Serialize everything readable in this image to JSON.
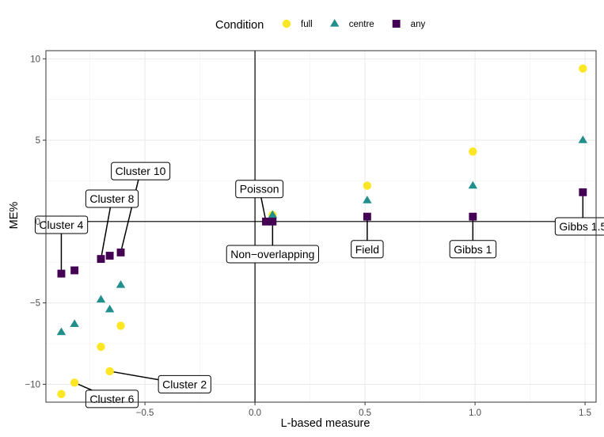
{
  "chart_data": {
    "type": "scatter",
    "title": "",
    "xlabel": "L-based measure",
    "ylabel": "ME%",
    "xlim": [
      -0.95,
      1.55
    ],
    "ylim": [
      -11.1,
      10.5
    ],
    "xticks": [
      -0.5,
      0.0,
      0.5,
      1.0,
      1.5
    ],
    "xtick_labels": [
      "−0.5",
      "0.0",
      "0.5",
      "1.0",
      "1.5"
    ],
    "yticks": [
      -10,
      -5,
      0,
      5,
      10
    ],
    "ytick_labels": [
      "−10",
      "−5",
      "0",
      "5",
      "10"
    ],
    "reference_lines": {
      "x": 0,
      "y": 0
    },
    "grid": true,
    "legend": {
      "title": "Condition",
      "position": "top"
    },
    "series": [
      {
        "name": "full",
        "marker": "circle",
        "color": "#FDE725",
        "points": [
          {
            "x": -0.88,
            "y": -10.6
          },
          {
            "x": -0.82,
            "y": -9.9
          },
          {
            "x": -0.7,
            "y": -7.7
          },
          {
            "x": -0.66,
            "y": -9.2
          },
          {
            "x": -0.61,
            "y": -6.4
          },
          {
            "x": 0.08,
            "y": 0.4
          },
          {
            "x": 0.51,
            "y": 2.2
          },
          {
            "x": 0.99,
            "y": 4.3
          },
          {
            "x": 1.49,
            "y": 9.4
          }
        ]
      },
      {
        "name": "centre",
        "marker": "triangle",
        "color": "#21908C",
        "points": [
          {
            "x": -0.88,
            "y": -6.8
          },
          {
            "x": -0.82,
            "y": -6.3
          },
          {
            "x": -0.7,
            "y": -4.8
          },
          {
            "x": -0.66,
            "y": -5.4
          },
          {
            "x": -0.61,
            "y": -3.9
          },
          {
            "x": 0.08,
            "y": 0.4
          },
          {
            "x": 0.51,
            "y": 1.3
          },
          {
            "x": 0.99,
            "y": 2.2
          },
          {
            "x": 1.49,
            "y": 5.0
          }
        ]
      },
      {
        "name": "any",
        "marker": "square",
        "color": "#440154",
        "points": [
          {
            "x": -0.88,
            "y": -3.2
          },
          {
            "x": -0.82,
            "y": -3.0
          },
          {
            "x": -0.7,
            "y": -2.3
          },
          {
            "x": -0.66,
            "y": -2.1
          },
          {
            "x": -0.61,
            "y": -1.9
          },
          {
            "x": 0.05,
            "y": 0.0
          },
          {
            "x": 0.08,
            "y": 0.0
          },
          {
            "x": 0.51,
            "y": 0.3
          },
          {
            "x": 0.99,
            "y": 0.3
          },
          {
            "x": 1.49,
            "y": 1.8
          }
        ]
      }
    ],
    "annotations": [
      {
        "text": "Cluster 10",
        "point": {
          "x": -0.61,
          "y": -1.9
        },
        "label_at": {
          "x": -0.52,
          "y": 3.1
        }
      },
      {
        "text": "Cluster 8",
        "point": {
          "x": -0.7,
          "y": -2.3
        },
        "label_at": {
          "x": -0.65,
          "y": 1.4
        }
      },
      {
        "text": "Cluster 4",
        "point": {
          "x": -0.88,
          "y": -3.2
        },
        "label_at": {
          "x": -0.88,
          "y": -0.2
        }
      },
      {
        "text": "Poisson",
        "point": {
          "x": 0.05,
          "y": 0.0
        },
        "label_at": {
          "x": 0.02,
          "y": 2.0
        }
      },
      {
        "text": "Non−overlapping",
        "point": {
          "x": 0.08,
          "y": 0.0
        },
        "label_at": {
          "x": 0.08,
          "y": -2.0
        }
      },
      {
        "text": "Field",
        "point": {
          "x": 0.51,
          "y": 0.3
        },
        "label_at": {
          "x": 0.51,
          "y": -1.7
        }
      },
      {
        "text": "Gibbs 1",
        "point": {
          "x": 0.99,
          "y": 0.3
        },
        "label_at": {
          "x": 0.99,
          "y": -1.7
        }
      },
      {
        "text": "Gibbs 1.5",
        "point": {
          "x": 1.49,
          "y": 1.8
        },
        "label_at": {
          "x": 1.49,
          "y": -0.3
        }
      },
      {
        "text": "Cluster 2",
        "point": {
          "x": -0.66,
          "y": -9.2
        },
        "label_at": {
          "x": -0.32,
          "y": -10.0
        }
      },
      {
        "text": "Cluster 6",
        "point": {
          "x": -0.82,
          "y": -9.9
        },
        "label_at": {
          "x": -0.65,
          "y": -10.9
        }
      }
    ]
  }
}
